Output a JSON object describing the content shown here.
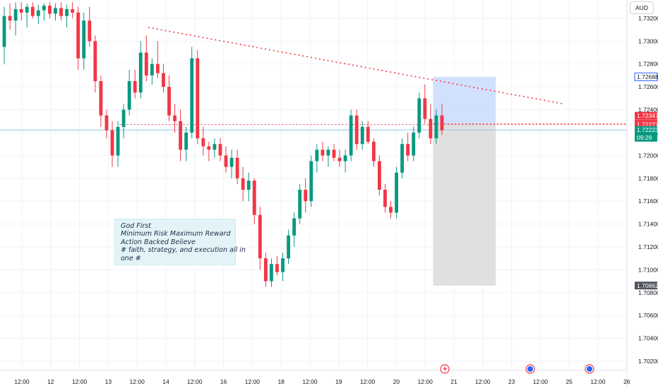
{
  "currency": "AUD",
  "note": {
    "lines": [
      "God First",
      "Minimum Risk Maximum Reward",
      "Action Backed Believe",
      "",
      "# faith, strategy, and execution all in",
      "one #"
    ]
  },
  "colors": {
    "up": "#089981",
    "down": "#f23645",
    "trendline": "#f23645",
    "target_zone": "#c9dafd",
    "stop_zone": "#dbdbdb",
    "current_line": "#8ecae6",
    "tag_red": "#f23645",
    "tag_green": "#089981",
    "tag_dark": "#50535e"
  },
  "price_tags": [
    {
      "label": "1.72688",
      "price": 1.72688,
      "style": "outline-blue"
    },
    {
      "label": "1.72347",
      "price": 1.72347,
      "style": "red"
    },
    {
      "label": "1.72278",
      "price": 1.72278,
      "style": "red"
    },
    {
      "label": "1.72272",
      "price": 1.72272,
      "style": "red"
    },
    {
      "label": "1.72223",
      "price": 1.72223,
      "style": "green",
      "sub": "09:29"
    },
    {
      "label": "1.70862",
      "price": 1.70862,
      "style": "dark"
    }
  ],
  "chart_data": {
    "type": "candlestick",
    "y_ticks": [
      1.732,
      1.73,
      1.728,
      1.726,
      1.724,
      1.722,
      1.72,
      1.718,
      1.716,
      1.714,
      1.712,
      1.71,
      1.708,
      1.706,
      1.704,
      1.702
    ],
    "y_tick_labels": [
      "1.73200",
      "1.73000",
      "1.72800",
      "1.72600",
      "1.72400",
      "1.72200",
      "1.72000",
      "1.71800",
      "1.71600",
      "1.71400",
      "1.71200",
      "1.71000",
      "1.70800",
      "1.70600",
      "1.70400",
      "1.70200"
    ],
    "ylim": [
      1.7012,
      1.7336
    ],
    "x_labels": [
      "12:00",
      "12",
      "12:00",
      "13",
      "12:00",
      "14",
      "12:00",
      "16",
      "12:00",
      "18",
      "12:00",
      "19",
      "12:00",
      "20",
      "12:00",
      "21",
      "12:00",
      "23",
      "12:00",
      "25",
      "12:00",
      "26"
    ],
    "xlim": [
      0,
      110
    ],
    "candles": [
      [
        1.7295,
        1.733,
        1.728,
        1.7322
      ],
      [
        1.7322,
        1.7333,
        1.731,
        1.7318
      ],
      [
        1.7318,
        1.7334,
        1.7305,
        1.7328
      ],
      [
        1.7328,
        1.7334,
        1.7318,
        1.7325
      ],
      [
        1.7325,
        1.7333,
        1.7312,
        1.733
      ],
      [
        1.733,
        1.7334,
        1.732,
        1.7322
      ],
      [
        1.7322,
        1.7332,
        1.7315,
        1.7327
      ],
      [
        1.7327,
        1.7333,
        1.7318,
        1.7331
      ],
      [
        1.7331,
        1.7334,
        1.732,
        1.7324
      ],
      [
        1.7324,
        1.7333,
        1.7318,
        1.7329
      ],
      [
        1.7329,
        1.7334,
        1.7318,
        1.7322
      ],
      [
        1.7322,
        1.7332,
        1.7312,
        1.7328
      ],
      [
        1.7328,
        1.7334,
        1.732,
        1.7325
      ],
      [
        1.7325,
        1.733,
        1.7275,
        1.7285
      ],
      [
        1.7285,
        1.7325,
        1.7275,
        1.7318
      ],
      [
        1.7318,
        1.733,
        1.7295,
        1.73
      ],
      [
        1.73,
        1.7305,
        1.7255,
        1.7265
      ],
      [
        1.7265,
        1.727,
        1.7225,
        1.7235
      ],
      [
        1.7235,
        1.724,
        1.7215,
        1.7222
      ],
      [
        1.7222,
        1.723,
        1.719,
        1.72
      ],
      [
        1.72,
        1.723,
        1.719,
        1.7225
      ],
      [
        1.7225,
        1.7245,
        1.7215,
        1.724
      ],
      [
        1.724,
        1.7275,
        1.7235,
        1.7265
      ],
      [
        1.7265,
        1.7275,
        1.725,
        1.7255
      ],
      [
        1.7255,
        1.73,
        1.725,
        1.729
      ],
      [
        1.729,
        1.7305,
        1.7265,
        1.727
      ],
      [
        1.727,
        1.7285,
        1.7262,
        1.728
      ],
      [
        1.728,
        1.73,
        1.7268,
        1.7272
      ],
      [
        1.7272,
        1.728,
        1.7255,
        1.726
      ],
      [
        1.726,
        1.727,
        1.723,
        1.7235
      ],
      [
        1.7235,
        1.7245,
        1.722,
        1.723
      ],
      [
        1.723,
        1.724,
        1.7195,
        1.7205
      ],
      [
        1.7205,
        1.7225,
        1.7195,
        1.722
      ],
      [
        1.722,
        1.7295,
        1.7215,
        1.7285
      ],
      [
        1.7285,
        1.7292,
        1.721,
        1.7215
      ],
      [
        1.7215,
        1.7225,
        1.72,
        1.7208
      ],
      [
        1.7208,
        1.7212,
        1.7195,
        1.7205
      ],
      [
        1.7205,
        1.7215,
        1.7198,
        1.721
      ],
      [
        1.721,
        1.7215,
        1.7195,
        1.72
      ],
      [
        1.72,
        1.7208,
        1.7185,
        1.719
      ],
      [
        1.719,
        1.7205,
        1.718,
        1.7198
      ],
      [
        1.7198,
        1.7205,
        1.7175,
        1.718
      ],
      [
        1.718,
        1.719,
        1.716,
        1.717
      ],
      [
        1.717,
        1.7185,
        1.716,
        1.7178
      ],
      [
        1.7178,
        1.718,
        1.714,
        1.7148
      ],
      [
        1.7148,
        1.7155,
        1.71,
        1.711
      ],
      [
        1.711,
        1.7115,
        1.7085,
        1.709
      ],
      [
        1.709,
        1.711,
        1.7085,
        1.7105
      ],
      [
        1.7105,
        1.7112,
        1.7095,
        1.7098
      ],
      [
        1.7098,
        1.7115,
        1.709,
        1.711
      ],
      [
        1.711,
        1.7135,
        1.7105,
        1.713
      ],
      [
        1.713,
        1.715,
        1.712,
        1.7145
      ],
      [
        1.7145,
        1.7175,
        1.714,
        1.717
      ],
      [
        1.717,
        1.718,
        1.715,
        1.716
      ],
      [
        1.716,
        1.72,
        1.7155,
        1.7195
      ],
      [
        1.7195,
        1.721,
        1.7185,
        1.7205
      ],
      [
        1.7205,
        1.7212,
        1.7195,
        1.72
      ],
      [
        1.72,
        1.7208,
        1.719,
        1.7205
      ],
      [
        1.7205,
        1.721,
        1.7195,
        1.7198
      ],
      [
        1.7198,
        1.7205,
        1.719,
        1.7195
      ],
      [
        1.7195,
        1.7205,
        1.7185,
        1.72
      ],
      [
        1.72,
        1.724,
        1.7195,
        1.7235
      ],
      [
        1.7235,
        1.724,
        1.7205,
        1.721
      ],
      [
        1.721,
        1.723,
        1.7205,
        1.7225
      ],
      [
        1.7225,
        1.723,
        1.721,
        1.7212
      ],
      [
        1.7212,
        1.7215,
        1.719,
        1.7195
      ],
      [
        1.7195,
        1.72,
        1.7165,
        1.717
      ],
      [
        1.717,
        1.7175,
        1.715,
        1.7155
      ],
      [
        1.7155,
        1.716,
        1.7145,
        1.715
      ],
      [
        1.715,
        1.719,
        1.7145,
        1.7185
      ],
      [
        1.7185,
        1.7215,
        1.718,
        1.721
      ],
      [
        1.721,
        1.722,
        1.7195,
        1.72
      ],
      [
        1.72,
        1.7225,
        1.7195,
        1.722
      ],
      [
        1.722,
        1.7255,
        1.7215,
        1.725
      ],
      [
        1.725,
        1.7262,
        1.7228,
        1.7232
      ],
      [
        1.7232,
        1.7245,
        1.721,
        1.7215
      ],
      [
        1.7215,
        1.724,
        1.721,
        1.7235
      ],
      [
        1.7235,
        1.7245,
        1.7218,
        1.7222
      ]
    ],
    "series": [
      {
        "points": [
          [
            26,
            1.7312
          ],
          [
            99,
            1.7245
          ]
        ]
      },
      {
        "points": [
          [
            21,
            1.7227
          ],
          [
            110,
            1.7227
          ]
        ]
      },
      {
        "points": [
          [
            76,
            1.72278
          ],
          [
            110,
            1.72278
          ]
        ]
      }
    ],
    "positions": [
      {
        "x_start": 76,
        "x_end": 87,
        "top": 1.72688,
        "bottom": 1.72272
      },
      {
        "x_start": 76,
        "x_end": 87,
        "top": 1.72272,
        "bottom": 1.70862
      }
    ],
    "current_price": 1.72223
  }
}
